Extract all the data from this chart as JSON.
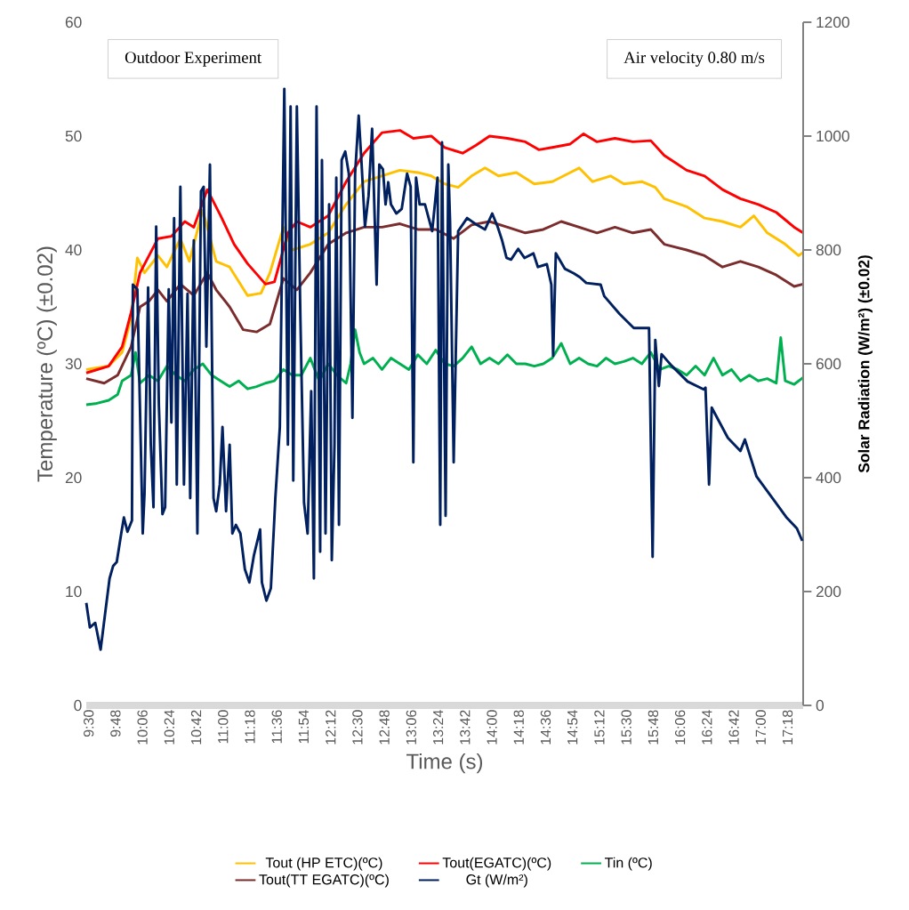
{
  "chart_data": {
    "type": "line",
    "xlabel": "Time (s)",
    "ylabel": "Temperature (ºC)  (±0.02)",
    "y2label": "Solar Radiation (W/m²)  (±0.02)",
    "annotations": [
      "Outdoor Experiment",
      "Air velocity 0.80 m/s"
    ],
    "xlim": [
      9.5,
      17.5
    ],
    "xticks": [
      {
        "value": 9.5,
        "label": "9:30"
      },
      {
        "value": 9.8,
        "label": "9:48"
      },
      {
        "value": 10.1,
        "label": "10:06"
      },
      {
        "value": 10.4,
        "label": "10:24"
      },
      {
        "value": 10.7,
        "label": "10:42"
      },
      {
        "value": 11.0,
        "label": "11:00"
      },
      {
        "value": 11.3,
        "label": "11:18"
      },
      {
        "value": 11.6,
        "label": "11:36"
      },
      {
        "value": 11.9,
        "label": "11:54"
      },
      {
        "value": 12.2,
        "label": "12:12"
      },
      {
        "value": 12.5,
        "label": "12:30"
      },
      {
        "value": 12.8,
        "label": "12:48"
      },
      {
        "value": 13.1,
        "label": "13:06"
      },
      {
        "value": 13.4,
        "label": "13:24"
      },
      {
        "value": 13.7,
        "label": "13:42"
      },
      {
        "value": 14.0,
        "label": "14:00"
      },
      {
        "value": 14.3,
        "label": "14:18"
      },
      {
        "value": 14.6,
        "label": "14:36"
      },
      {
        "value": 14.9,
        "label": "14:54"
      },
      {
        "value": 15.2,
        "label": "15:12"
      },
      {
        "value": 15.5,
        "label": "15:30"
      },
      {
        "value": 15.8,
        "label": "15:48"
      },
      {
        "value": 16.1,
        "label": "16:06"
      },
      {
        "value": 16.4,
        "label": "16:24"
      },
      {
        "value": 16.7,
        "label": "16:42"
      },
      {
        "value": 17.0,
        "label": "17:00"
      },
      {
        "value": 17.3,
        "label": "17:18"
      }
    ],
    "ylim": [
      0,
      60
    ],
    "yticks": [
      0,
      10,
      20,
      30,
      40,
      50,
      60
    ],
    "y2lim": [
      0,
      1200
    ],
    "y2ticks": [
      0,
      200,
      400,
      600,
      800,
      1000,
      1200
    ],
    "legend": "bottom",
    "marker": "none",
    "line_style": "solid",
    "series": [
      {
        "name": "Tout (HP ETC)(ºC)",
        "color": "#ffc000",
        "x": [
          9.5,
          9.75,
          9.9,
          10.0,
          10.07,
          10.15,
          10.3,
          10.4,
          10.55,
          10.65,
          10.8,
          10.95,
          11.1,
          11.3,
          11.45,
          11.55,
          11.7,
          11.8,
          12.0,
          12.2,
          12.4,
          12.6,
          12.8,
          13.0,
          13.2,
          13.35,
          13.5,
          13.65,
          13.8,
          13.95,
          14.1,
          14.3,
          14.5,
          14.7,
          14.9,
          15.0,
          15.15,
          15.35,
          15.5,
          15.7,
          15.85,
          15.95,
          16.2,
          16.4,
          16.6,
          16.8,
          16.95,
          17.1,
          17.3,
          17.45,
          17.5
        ],
        "values": [
          29.5,
          29.8,
          31,
          34,
          39.3,
          38,
          39.5,
          38.5,
          41,
          39,
          43.5,
          39,
          38.5,
          36,
          36.2,
          38,
          42,
          40,
          40.5,
          41.5,
          44,
          46,
          46.5,
          47,
          46.8,
          46.5,
          45.8,
          45.5,
          46.5,
          47.2,
          46.5,
          46.8,
          45.8,
          46,
          46.8,
          47.2,
          46,
          46.5,
          45.8,
          46,
          45.5,
          44.5,
          43.8,
          42.8,
          42.5,
          42,
          43,
          41.5,
          40.5,
          39.5,
          39.8
        ]
      },
      {
        "name": "Tout(EGATC)(ºC)",
        "color": "#ff0000",
        "x": [
          9.5,
          9.75,
          9.9,
          10.0,
          10.1,
          10.2,
          10.3,
          10.45,
          10.6,
          10.7,
          10.85,
          11.0,
          11.15,
          11.3,
          11.5,
          11.6,
          11.75,
          11.85,
          12.0,
          12.2,
          12.4,
          12.6,
          12.8,
          13.0,
          13.15,
          13.35,
          13.5,
          13.7,
          13.85,
          14.0,
          14.2,
          14.4,
          14.55,
          14.7,
          14.9,
          15.05,
          15.2,
          15.4,
          15.6,
          15.8,
          15.95,
          16.2,
          16.4,
          16.6,
          16.8,
          17.0,
          17.2,
          17.4,
          17.5
        ],
        "values": [
          29.2,
          29.8,
          31.5,
          34.5,
          38,
          39.5,
          41,
          41.2,
          42.5,
          42,
          45.3,
          43,
          40.5,
          38.8,
          37,
          37.2,
          41.5,
          42.5,
          42,
          43,
          46,
          48.5,
          50.3,
          50.5,
          49.8,
          50,
          49,
          48.5,
          49.2,
          50,
          49.8,
          49.5,
          48.8,
          49,
          49.3,
          50.2,
          49.5,
          49.8,
          49.5,
          49.6,
          48.3,
          47,
          46.5,
          45.3,
          44.5,
          44,
          43.3,
          42,
          41.5
        ]
      },
      {
        "name": "Tin (ºC)",
        "color": "#00b050",
        "x": [
          9.5,
          9.6,
          9.75,
          9.85,
          9.9,
          10.0,
          10.05,
          10.1,
          10.2,
          10.3,
          10.4,
          10.5,
          10.6,
          10.7,
          10.8,
          10.9,
          11.0,
          11.1,
          11.2,
          11.3,
          11.4,
          11.5,
          11.6,
          11.7,
          11.8,
          11.9,
          12.0,
          12.1,
          12.2,
          12.3,
          12.4,
          12.45,
          12.5,
          12.55,
          12.6,
          12.7,
          12.8,
          12.9,
          13.0,
          13.1,
          13.2,
          13.3,
          13.4,
          13.5,
          13.6,
          13.7,
          13.8,
          13.9,
          14.0,
          14.1,
          14.2,
          14.3,
          14.4,
          14.5,
          14.6,
          14.7,
          14.8,
          14.9,
          15.0,
          15.1,
          15.2,
          15.3,
          15.4,
          15.5,
          15.6,
          15.7,
          15.8,
          15.9,
          16.0,
          16.1,
          16.2,
          16.3,
          16.4,
          16.5,
          16.6,
          16.7,
          16.8,
          16.9,
          17.0,
          17.1,
          17.2,
          17.25,
          17.3,
          17.4,
          17.5
        ],
        "values": [
          26.4,
          26.5,
          26.8,
          27.3,
          28.5,
          29,
          31,
          28.3,
          29,
          28.5,
          29.8,
          29,
          28.5,
          29.5,
          30,
          29,
          28.5,
          28,
          28.5,
          27.8,
          28,
          28.3,
          28.5,
          29.5,
          29,
          29,
          30.5,
          28.5,
          30,
          29,
          28.3,
          30,
          33,
          31,
          30,
          30.5,
          29.5,
          30.5,
          30,
          29.5,
          30.8,
          30,
          31.2,
          30,
          29.8,
          30.5,
          31.5,
          30,
          30.5,
          30,
          30.8,
          30,
          30,
          29.8,
          30,
          30.5,
          31.8,
          30,
          30.5,
          30,
          29.8,
          30.5,
          30,
          30.2,
          30.5,
          30,
          31,
          29.5,
          29.8,
          29.5,
          29,
          29.8,
          29,
          30.5,
          29,
          29.5,
          28.5,
          29,
          28.5,
          28.7,
          28.3,
          32.3,
          28.5,
          28.2,
          28.8
        ]
      },
      {
        "name": "Tout(TT EGATC)(ºC)",
        "color": "#7b2c2c",
        "x": [
          9.5,
          9.7,
          9.85,
          10.0,
          10.1,
          10.2,
          10.3,
          10.4,
          10.55,
          10.7,
          10.85,
          10.95,
          11.1,
          11.25,
          11.4,
          11.55,
          11.7,
          11.85,
          12.0,
          12.2,
          12.4,
          12.6,
          12.8,
          13.0,
          13.2,
          13.4,
          13.6,
          13.8,
          14.0,
          14.2,
          14.4,
          14.6,
          14.8,
          15.0,
          15.2,
          15.4,
          15.6,
          15.8,
          15.95,
          16.2,
          16.4,
          16.6,
          16.8,
          17.0,
          17.2,
          17.4,
          17.5
        ],
        "values": [
          28.7,
          28.3,
          29,
          31.5,
          35,
          35.5,
          36.5,
          35.5,
          37,
          36,
          38,
          36.5,
          35,
          33,
          32.8,
          33.5,
          37.5,
          36.5,
          38,
          40.5,
          41.5,
          42,
          42,
          42.3,
          41.8,
          41.8,
          41,
          42.2,
          42.5,
          42,
          41.5,
          41.8,
          42.5,
          42,
          41.5,
          42,
          41.5,
          41.8,
          40.5,
          40,
          39.5,
          38.5,
          39,
          38.5,
          37.8,
          36.8,
          37
        ]
      },
      {
        "name": "Gt (W/m²)",
        "color": "#002060",
        "axis": "y2",
        "x": [
          9.5,
          9.54,
          9.6,
          9.66,
          9.71,
          9.76,
          9.8,
          9.84,
          9.89,
          9.92,
          9.96,
          10.01,
          10.02,
          10.07,
          10.13,
          10.15,
          10.19,
          10.22,
          10.25,
          10.28,
          10.31,
          10.35,
          10.38,
          10.42,
          10.45,
          10.48,
          10.51,
          10.55,
          10.59,
          10.63,
          10.66,
          10.7,
          10.74,
          10.78,
          10.81,
          10.84,
          10.88,
          10.92,
          10.95,
          10.99,
          11.02,
          11.06,
          11.1,
          11.13,
          11.17,
          11.22,
          11.27,
          11.32,
          11.37,
          11.44,
          11.46,
          11.51,
          11.56,
          11.61,
          11.66,
          11.71,
          11.75,
          11.78,
          11.81,
          11.85,
          11.89,
          11.93,
          11.97,
          12.01,
          12.04,
          12.07,
          12.11,
          12.13,
          12.17,
          12.21,
          12.24,
          12.27,
          12.29,
          12.32,
          12.35,
          12.39,
          12.43,
          12.47,
          12.5,
          12.54,
          12.57,
          12.61,
          12.65,
          12.69,
          12.74,
          12.77,
          12.81,
          12.84,
          12.87,
          12.9,
          12.96,
          13.02,
          13.08,
          13.12,
          13.15,
          13.18,
          13.22,
          13.28,
          13.36,
          13.42,
          13.45,
          13.47,
          13.51,
          13.54,
          13.56,
          13.6,
          13.65,
          13.75,
          13.85,
          13.95,
          14.03,
          14.09,
          14.14,
          14.19,
          14.24,
          14.32,
          14.39,
          14.49,
          14.54,
          14.64,
          14.69,
          14.71,
          14.74,
          14.84,
          14.94,
          15.01,
          15.08,
          15.24,
          15.28,
          15.45,
          15.61,
          15.78,
          15.82,
          15.85,
          15.89,
          15.92,
          16.03,
          16.21,
          16.39,
          16.41,
          16.45,
          16.48,
          16.66,
          16.8,
          16.85,
          16.98,
          17.18,
          17.31,
          17.43,
          17.49
        ],
        "values": [
          180,
          137,
          145,
          98,
          161,
          223,
          245,
          252,
          302,
          330,
          305,
          325,
          739,
          731,
          302,
          372,
          734,
          458,
          348,
          841,
          528,
          336,
          348,
          731,
          497,
          856,
          388,
          911,
          388,
          723,
          364,
          817,
          302,
          903,
          911,
          630,
          950,
          364,
          341,
          388,
          489,
          341,
          458,
          302,
          317,
          302,
          239,
          216,
          263,
          309,
          216,
          184,
          206,
          364,
          489,
          1083,
          458,
          1052,
          395,
          1052,
          677,
          356,
          302,
          552,
          223,
          1052,
          270,
          958,
          302,
          880,
          255,
          458,
          927,
          317,
          958,
          973,
          934,
          505,
          934,
          1036,
          958,
          841,
          895,
          1013,
          739,
          950,
          942,
          880,
          919,
          880,
          864,
          872,
          934,
          911,
          427,
          927,
          880,
          880,
          833,
          927,
          317,
          989,
          333,
          950,
          848,
          427,
          833,
          856,
          845,
          836,
          864,
          841,
          817,
          786,
          783,
          802,
          786,
          794,
          770,
          775,
          739,
          614,
          794,
          767,
          759,
          752,
          742,
          739,
          719,
          688,
          663,
          663,
          261,
          642,
          561,
          617,
          597,
          569,
          555,
          558,
          388,
          523,
          470,
          447,
          467,
          402,
          359,
          331,
          311,
          289
        ]
      }
    ]
  }
}
